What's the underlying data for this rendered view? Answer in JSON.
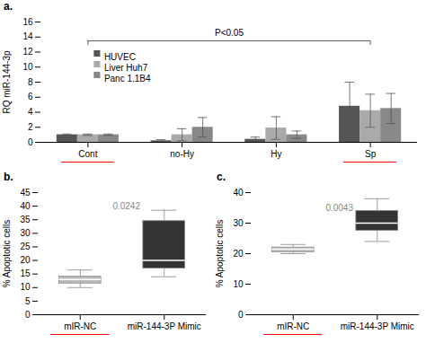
{
  "chart_data": [
    {
      "type": "bar",
      "title": "a.",
      "ylabel": "RQ miR-144-3p",
      "categories": [
        "Cont",
        "no-Hy",
        "Hy",
        "Sp"
      ],
      "series": [
        {
          "name": "HUVEC",
          "color": "#555555",
          "values": [
            1.0,
            0.2,
            0.4,
            4.8
          ],
          "errors": [
            0.1,
            0.15,
            0.3,
            3.2
          ]
        },
        {
          "name": "Liver Huh7",
          "color": "#aaaaaa",
          "values": [
            1.0,
            1.0,
            1.9,
            4.2
          ],
          "errors": [
            0.1,
            0.8,
            1.5,
            2.2
          ]
        },
        {
          "name": "Panc 1.1B4",
          "color": "#888888",
          "values": [
            1.0,
            2.0,
            1.0,
            4.5
          ],
          "errors": [
            0.1,
            1.3,
            0.5,
            2.0
          ]
        }
      ],
      "ylim": [
        0,
        16
      ],
      "yticks": [
        0,
        2,
        4,
        6,
        8,
        10,
        12,
        14,
        16
      ],
      "grid": false,
      "legend": "upper left",
      "annotations": [
        {
          "text": "P<0.05",
          "from": "Cont",
          "to": "Sp",
          "y": 13.5
        },
        {
          "type": "underline",
          "categories": [
            "Cont",
            "Sp"
          ],
          "color": "red"
        }
      ]
    },
    {
      "type": "box",
      "title": "b.",
      "ylabel": "% Apoptotic cells",
      "categories": [
        "mIR-NC",
        "miR-144-3P Mimic"
      ],
      "boxes": [
        {
          "median": 13.0,
          "q1": 11.5,
          "q3": 14.0,
          "whislo": 10.0,
          "whishi": 16.5,
          "color": "#bbbbbb"
        },
        {
          "median": 20.0,
          "q1": 17.0,
          "q3": 34.5,
          "whislo": 14.0,
          "whishi": 38.5,
          "color": "#333333"
        }
      ],
      "ylim": [
        0,
        45
      ],
      "yticks": [
        0,
        5,
        10,
        15,
        20,
        25,
        30,
        35,
        40,
        45
      ],
      "grid": false,
      "annotations": [
        {
          "text": "0.0242",
          "x": 0.55,
          "y": 39
        },
        {
          "type": "underline",
          "categories": [
            "mIR-NC"
          ],
          "color": "red"
        }
      ]
    },
    {
      "type": "box",
      "title": "c.",
      "ylabel": "% Apoptotic cells",
      "categories": [
        "mIR-NC",
        "miR-144-3P Mimic"
      ],
      "boxes": [
        {
          "median": 21.5,
          "q1": 20.5,
          "q3": 22.0,
          "whislo": 20.0,
          "whishi": 23.0,
          "color": "#bbbbbb"
        },
        {
          "median": 30.0,
          "q1": 27.5,
          "q3": 34.0,
          "whislo": 24.0,
          "whishi": 38.0,
          "color": "#333333"
        }
      ],
      "ylim": [
        0,
        40
      ],
      "yticks": [
        0,
        10,
        20,
        30,
        40
      ],
      "grid": false,
      "annotations": [
        {
          "text": "0.0043",
          "x": 0.55,
          "y": 34
        },
        {
          "type": "underline",
          "categories": [
            "mIR-NC"
          ],
          "color": "red"
        }
      ]
    }
  ]
}
